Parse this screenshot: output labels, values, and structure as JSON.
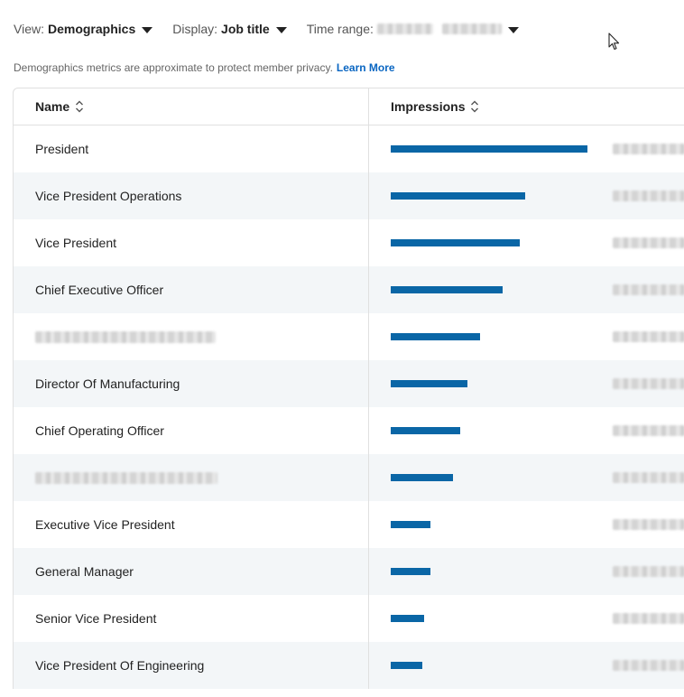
{
  "toolbar": {
    "view_label": "View:",
    "view_value": "Demographics",
    "display_label": "Display:",
    "display_value": "Job title",
    "time_range_label": "Time range:"
  },
  "notice": {
    "text": "Demographics metrics are approximate to protect member privacy.",
    "link": "Learn More"
  },
  "table": {
    "headers": {
      "name": "Name",
      "impressions": "Impressions"
    },
    "bar_color": "#0a66a6",
    "max_impressions_relative": 1.0,
    "rows": [
      {
        "name": "President",
        "redacted_name": false,
        "relative_impressions": 1.0
      },
      {
        "name": "Vice President Operations",
        "redacted_name": false,
        "relative_impressions": 0.685
      },
      {
        "name": "Vice President",
        "redacted_name": false,
        "relative_impressions": 0.655
      },
      {
        "name": "Chief Executive Officer",
        "redacted_name": false,
        "relative_impressions": 0.57
      },
      {
        "name": "",
        "redacted_name": true,
        "relative_impressions": 0.455
      },
      {
        "name": "Director Of Manufacturing",
        "redacted_name": false,
        "relative_impressions": 0.39
      },
      {
        "name": "Chief Operating Officer",
        "redacted_name": false,
        "relative_impressions": 0.355
      },
      {
        "name": "",
        "redacted_name": true,
        "relative_impressions": 0.315
      },
      {
        "name": "Executive Vice President",
        "redacted_name": false,
        "relative_impressions": 0.2
      },
      {
        "name": "General Manager",
        "redacted_name": false,
        "relative_impressions": 0.2
      },
      {
        "name": "Senior Vice President",
        "redacted_name": false,
        "relative_impressions": 0.17
      },
      {
        "name": "Vice President Of Engineering",
        "redacted_name": false,
        "relative_impressions": 0.16
      }
    ]
  },
  "icons": {
    "view_caret": "caret-down-icon",
    "display_caret": "caret-down-icon",
    "time_range_caret": "caret-down-icon",
    "sort": "sort-icon",
    "cursor": "mouse-cursor-icon"
  }
}
